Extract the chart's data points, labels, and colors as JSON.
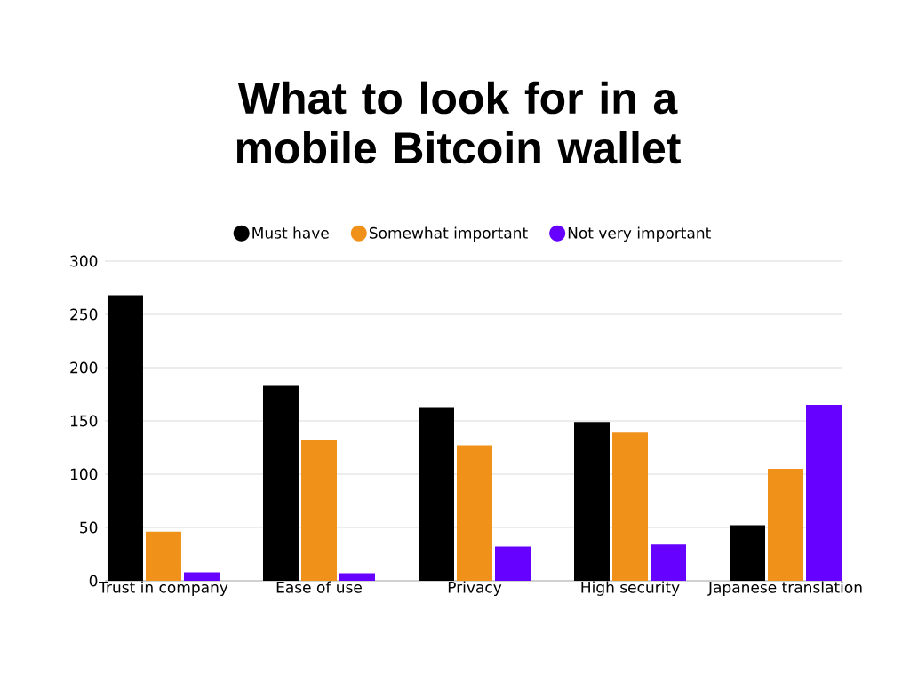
{
  "chart_data": {
    "type": "bar",
    "title": "What to look for in a mobile Bitcoin wallet",
    "categories": [
      "Trust in company",
      "Ease of use",
      "Privacy",
      "High security",
      "Japanese translation"
    ],
    "series": [
      {
        "name": "Must have",
        "color": "#000000",
        "values": [
          268,
          183,
          163,
          149,
          52
        ]
      },
      {
        "name": "Somewhat important",
        "color": "#f0921a",
        "values": [
          46,
          132,
          127,
          139,
          105
        ]
      },
      {
        "name": "Not very important",
        "color": "#6600ff",
        "values": [
          8,
          7,
          32,
          34,
          165
        ]
      }
    ],
    "ylim": [
      0,
      300
    ],
    "yticks": [
      0,
      50,
      100,
      150,
      200,
      250,
      300
    ],
    "grid": "y",
    "legend": "top"
  }
}
